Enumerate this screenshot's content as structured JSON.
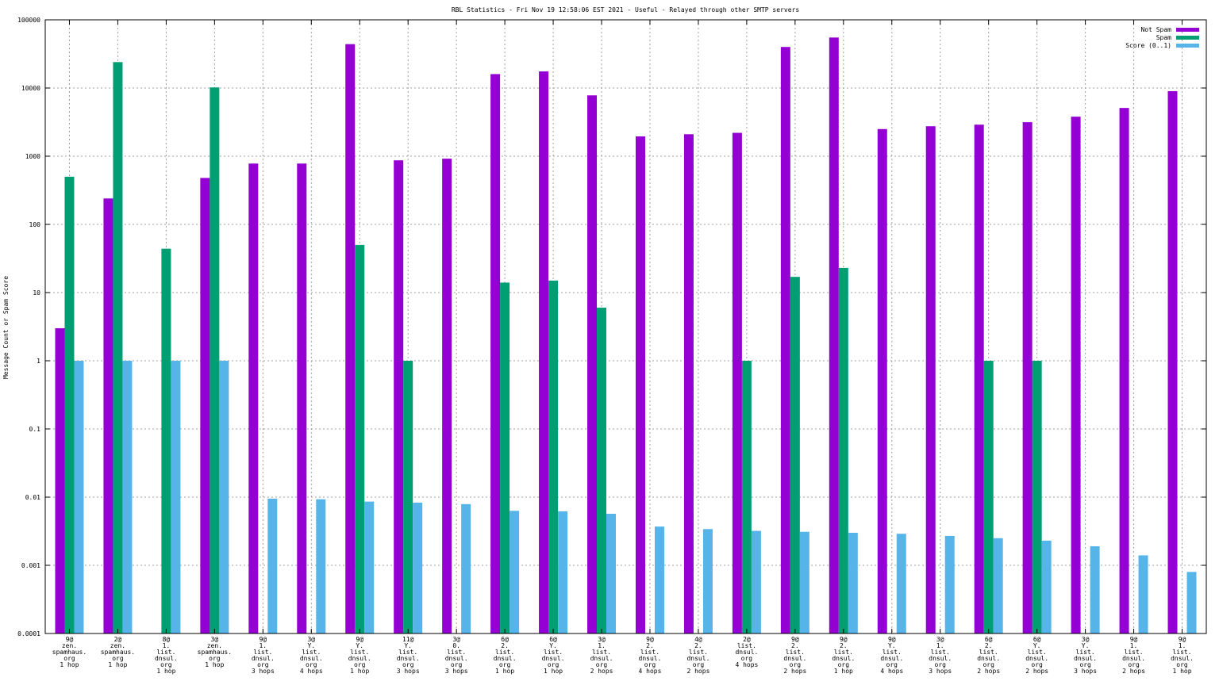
{
  "chart_data": {
    "type": "bar",
    "title": "RBL Statistics - Fri Nov 19 12:58:06 EST 2021 - Useful - Relayed through other SMTP servers",
    "xlabel": "",
    "ylabel": "Message Count or Spam Score",
    "yscale": "log",
    "ylim": [
      0.0001,
      100000
    ],
    "yticks": [
      "0.0001",
      "0.001",
      "0.01",
      "0.1",
      "1",
      "10",
      "100",
      "1000",
      "10000",
      "100000"
    ],
    "grid": true,
    "legend_position": "top-right",
    "categories": [
      [
        "9@",
        "zen.",
        "spamhaus.",
        "org",
        "1 hop"
      ],
      [
        "2@",
        "zen.",
        "spamhaus.",
        "org",
        "1 hop"
      ],
      [
        "8@",
        "1.",
        "list.",
        "dnsul.",
        "org",
        "1 hop"
      ],
      [
        "3@",
        "zen.",
        "spamhaus.",
        "org",
        "1 hop"
      ],
      [
        "9@",
        "1.",
        "list.",
        "dnsul.",
        "org",
        "3 hops"
      ],
      [
        "3@",
        "Y.",
        "list.",
        "dnsul.",
        "org",
        "4 hops"
      ],
      [
        "9@",
        "Y.",
        "list.",
        "dnsul.",
        "org",
        "1 hop"
      ],
      [
        "11@",
        "Y.",
        "list.",
        "dnsul.",
        "org",
        "3 hops"
      ],
      [
        "3@",
        "0.",
        "list.",
        "dnsul.",
        "org",
        "3 hops"
      ],
      [
        "6@",
        "2.",
        "list.",
        "dnsul.",
        "org",
        "1 hop"
      ],
      [
        "6@",
        "Y.",
        "list.",
        "dnsul.",
        "org",
        "1 hop"
      ],
      [
        "3@",
        "1.",
        "list.",
        "dnsul.",
        "org",
        "2 hops"
      ],
      [
        "9@",
        "2.",
        "list.",
        "dnsul.",
        "org",
        "4 hops"
      ],
      [
        "4@",
        "2.",
        "list.",
        "dnsul.",
        "org",
        "2 hops"
      ],
      [
        "2@",
        "list.",
        "dnsul.",
        "org",
        "4 hops"
      ],
      [
        "9@",
        "2.",
        "list.",
        "dnsul.",
        "org",
        "2 hops"
      ],
      [
        "9@",
        "2.",
        "list.",
        "dnsul.",
        "org",
        "1 hop"
      ],
      [
        "9@",
        "Y.",
        "list.",
        "dnsul.",
        "org",
        "4 hops"
      ],
      [
        "3@",
        "1.",
        "list.",
        "dnsul.",
        "org",
        "3 hops"
      ],
      [
        "6@",
        "2.",
        "list.",
        "dnsul.",
        "org",
        "2 hops"
      ],
      [
        "6@",
        "Y.",
        "list.",
        "dnsul.",
        "org",
        "2 hops"
      ],
      [
        "3@",
        "Y.",
        "list.",
        "dnsul.",
        "org",
        "3 hops"
      ],
      [
        "9@",
        "1.",
        "list.",
        "dnsul.",
        "org",
        "2 hops"
      ],
      [
        "9@",
        "1.",
        "list.",
        "dnsul.",
        "org",
        "1 hop"
      ]
    ],
    "series": [
      {
        "name": "Not Spam",
        "color": "#9400d3",
        "values": [
          3,
          240,
          null,
          480,
          780,
          780,
          44000,
          870,
          920,
          16000,
          17500,
          7800,
          1950,
          2100,
          2200,
          40000,
          55000,
          2500,
          2750,
          2900,
          3150,
          3800,
          5100,
          9000
        ]
      },
      {
        "name": "Spam",
        "color": "#009e73",
        "values": [
          500,
          24000,
          44,
          10200,
          null,
          null,
          50,
          1,
          null,
          14,
          15,
          6,
          null,
          null,
          1,
          17,
          23,
          null,
          null,
          1,
          1,
          null,
          null,
          null
        ]
      },
      {
        "name": "Score (0..1)",
        "color": "#56b4e9",
        "values": [
          1,
          1,
          1,
          1,
          0.0095,
          0.0093,
          0.0086,
          0.0083,
          0.0079,
          0.0063,
          0.0062,
          0.0057,
          0.0037,
          0.0034,
          0.0032,
          0.0031,
          0.003,
          0.0029,
          0.0027,
          0.0025,
          0.0023,
          0.0019,
          0.0014,
          0.0008
        ]
      }
    ]
  }
}
